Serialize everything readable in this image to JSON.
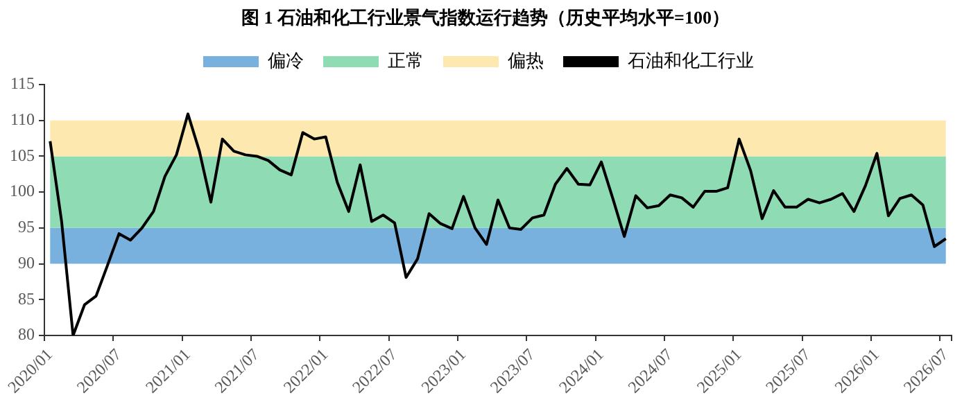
{
  "chart_data": {
    "type": "line",
    "title": "图 1 石油和化工行业景气指数运行趋势（历史平均水平=100）",
    "categories": [
      "2020/01",
      null,
      null,
      null,
      null,
      null,
      "2020/07",
      null,
      null,
      null,
      null,
      null,
      "2021/01",
      null,
      null,
      null,
      null,
      null,
      "2021/07",
      null,
      null,
      null,
      null,
      null,
      "2022/01",
      null,
      null,
      null,
      null,
      null,
      "2022/07",
      null,
      null,
      null,
      null,
      null,
      "2023/01",
      null,
      null,
      null,
      null,
      null,
      "2023/07",
      null,
      null,
      null,
      null,
      null,
      "2024/01",
      null,
      null,
      null,
      null,
      null,
      "2024/07",
      null,
      null,
      null,
      null,
      null,
      "2025/01",
      null,
      null,
      null,
      null,
      null,
      "2025/07",
      null,
      null,
      null,
      null,
      null,
      "2026/01",
      null,
      null,
      null,
      null,
      null,
      "2026/07"
    ],
    "series": [
      {
        "name": "石油和化工行业",
        "color": "#000000",
        "values": [
          107.1,
          95.9,
          80,
          84.3,
          85.5,
          89.8,
          94.2,
          93.3,
          95.0,
          97.3,
          102.2,
          105.2,
          110.9,
          105.7,
          98.6,
          107.4,
          105.7,
          105.2,
          105.0,
          104.4,
          103.1,
          102.4,
          108.3,
          107.4,
          107.7,
          101.4,
          97.3,
          103.8,
          95.9,
          96.8,
          95.7,
          88.1,
          90.7,
          97.0,
          95.6,
          94.9,
          99.4,
          95.0,
          92.7,
          98.9,
          95.0,
          94.8,
          96.4,
          96.8,
          101.1,
          103.3,
          101.1,
          101.0,
          104.2,
          99.1,
          93.8,
          99.5,
          97.8,
          98.1,
          99.6,
          99.2,
          97.9,
          100.1,
          100.1,
          100.6,
          107.4,
          103.0,
          96.3,
          100.2,
          97.9,
          97.9,
          99.0,
          98.5,
          99.0,
          99.8,
          97.3,
          100.9,
          105.4,
          96.7,
          99.1,
          99.6,
          98.2,
          92.4,
          93.5
        ]
      }
    ],
    "bands": [
      {
        "axis": "y",
        "from": 90,
        "to": 95,
        "label": "偏冷",
        "color": "#78b0de"
      },
      {
        "axis": "y",
        "from": 95,
        "to": 105,
        "label": "正常",
        "color": "#8fdcb4"
      },
      {
        "axis": "y",
        "from": 105,
        "to": 110,
        "label": "偏热",
        "color": "#fde9b0"
      }
    ],
    "ylim": [
      80,
      115
    ],
    "yticks": [
      80,
      85,
      90,
      95,
      100,
      105,
      110,
      115
    ],
    "grid": false,
    "legend": "top",
    "marker": "none",
    "line_style": "solid"
  }
}
